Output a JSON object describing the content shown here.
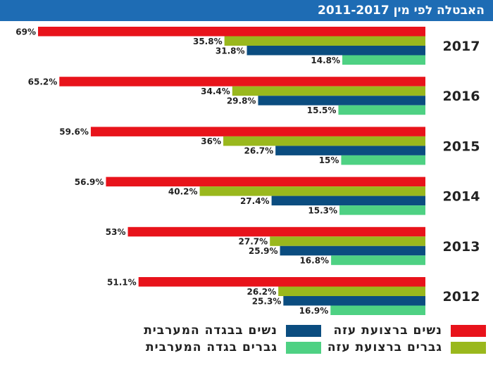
{
  "header": {
    "title": "האבטלה לפי מין 2011-2017"
  },
  "chart_data": {
    "type": "bar",
    "orientation": "horizontal",
    "categories": [
      "2017",
      "2016",
      "2015",
      "2014",
      "2013",
      "2012"
    ],
    "series": [
      {
        "name": "נשים ברצועת עזה",
        "color": "#e8131b",
        "values": [
          69,
          65.2,
          59.6,
          56.9,
          53,
          51.1
        ],
        "labels": [
          "69%",
          "65.2%",
          "59.6%",
          "56.9%",
          "53%",
          "51.1%"
        ]
      },
      {
        "name": "גברים ברצועת עזה",
        "color": "#9ab81d",
        "values": [
          35.8,
          34.4,
          36,
          40.2,
          27.7,
          26.2
        ],
        "labels": [
          "35.8%",
          "34.4%",
          "36%",
          "40.2%",
          "27.7%",
          "26.2%"
        ]
      },
      {
        "name": "נשים בבגדה המערבית",
        "color": "#0b4d80",
        "values": [
          31.8,
          29.8,
          26.7,
          27.4,
          25.9,
          25.3
        ],
        "labels": [
          "31.8%",
          "29.8%",
          "26.7%",
          "27.4%",
          "25.9%",
          "25.3%"
        ]
      },
      {
        "name": "גברים בגדה המערבית",
        "color": "#4ed183",
        "values": [
          14.8,
          15.5,
          15,
          15.3,
          16.8,
          16.9
        ],
        "labels": [
          "14.8%",
          "15.5%",
          "15%",
          "15.3%",
          "16.8%",
          "16.9%"
        ]
      }
    ],
    "xlim": [
      0,
      70
    ],
    "grid": false,
    "legend_position": "bottom",
    "bar_direction": "right-to-left"
  }
}
